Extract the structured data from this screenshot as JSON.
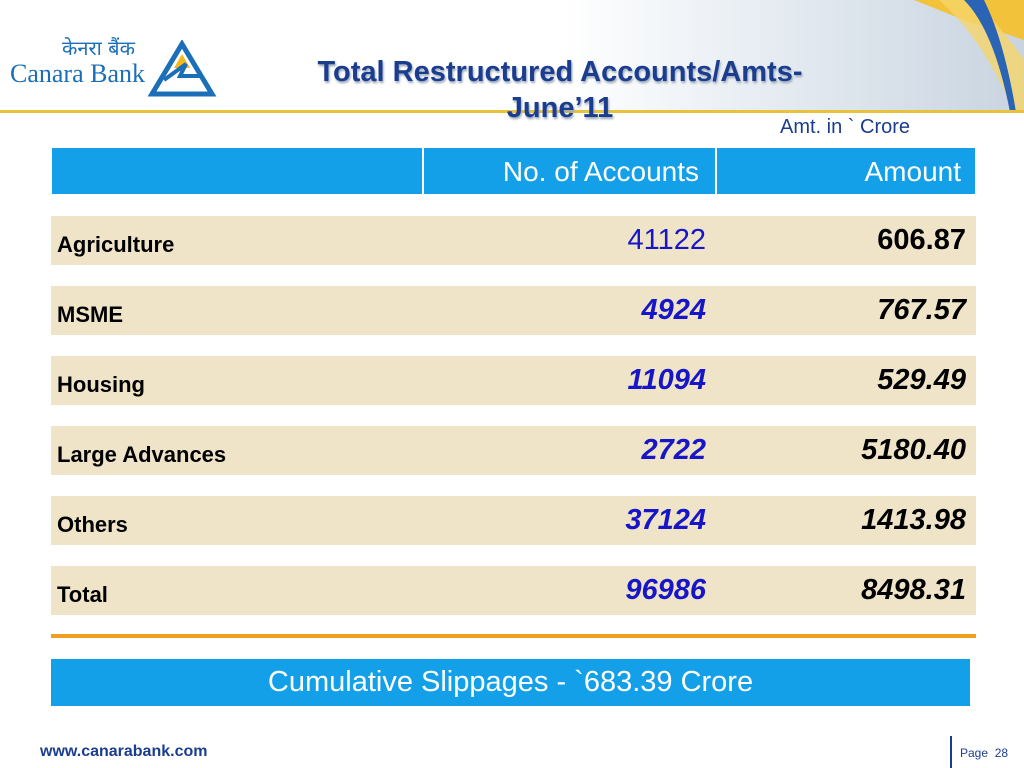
{
  "header": {
    "logo_hindi": "केनरा बैंक",
    "logo_english": "Canara Bank",
    "title_line1": "Total Restructured Accounts/Amts-",
    "title_line2": "June’11",
    "unit_note": "Amt. in ` Crore"
  },
  "table": {
    "columns": [
      "",
      "No. of Accounts",
      "Amount"
    ],
    "rows": [
      {
        "label": "Agriculture",
        "accounts": "41122",
        "amount": "606.87"
      },
      {
        "label": "MSME",
        "accounts": "4924",
        "amount": "767.57"
      },
      {
        "label": "Housing",
        "accounts": "11094",
        "amount": "529.49"
      },
      {
        "label": "Large Advances",
        "accounts": "2722",
        "amount": "5180.40"
      },
      {
        "label": "Others",
        "accounts": "37124",
        "amount": "1413.98"
      },
      {
        "label": "Total",
        "accounts": "96986",
        "amount": "8498.31"
      }
    ]
  },
  "slippage_banner": "Cumulative  Slippages - `683.39 Crore",
  "footer": {
    "url": "www.canarabank.com",
    "page_label": "Page",
    "page_number": "28"
  },
  "colors": {
    "brand_blue": "#1b6fb8",
    "header_cell_blue": "#14a0e8",
    "row_beige": "#efe4c8",
    "accent_gold": "#e8c23a",
    "divider_orange": "#f0a020",
    "title_navy": "#1b3d8f"
  }
}
